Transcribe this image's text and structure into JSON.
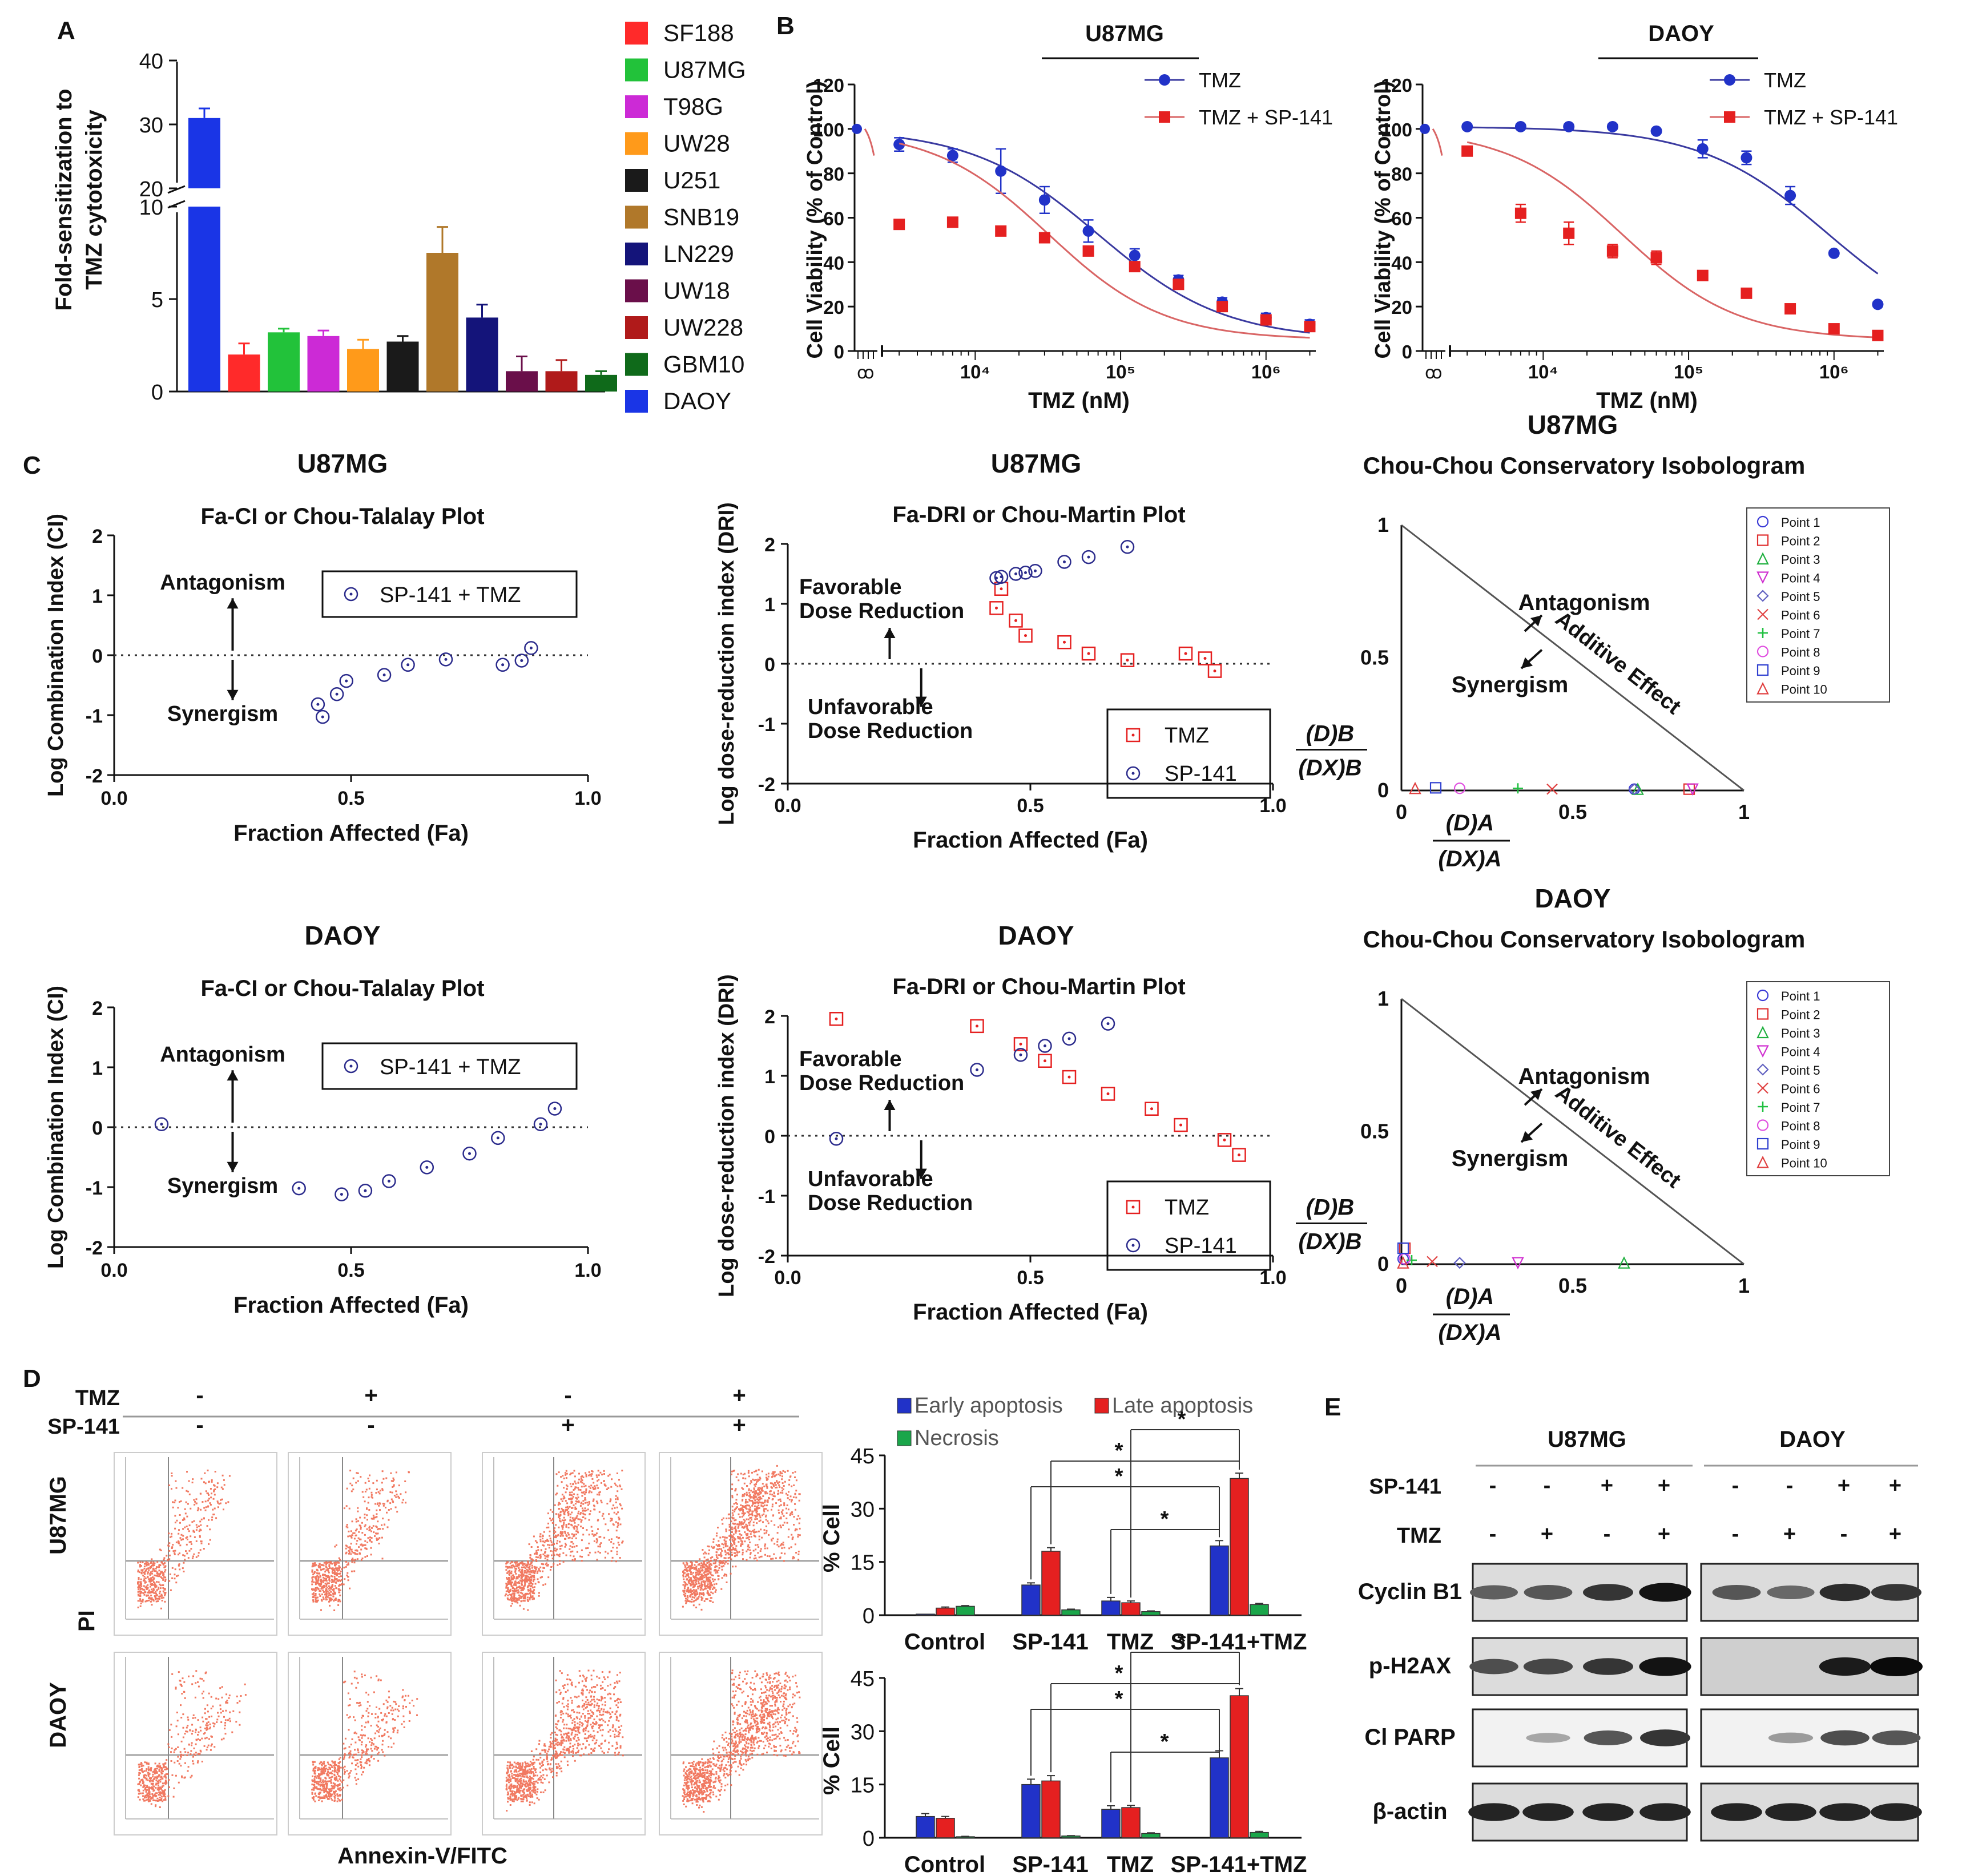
{
  "panel_letters": {
    "a": "A",
    "b": "B",
    "c": "C",
    "d": "D",
    "e": "E"
  },
  "colors": {
    "blue": "#2132c8",
    "red": "#e52020",
    "green": "#1aa64a",
    "navy": "#2b2b8c",
    "curve_blue": "#3a3aa0",
    "curve_red": "#d96565",
    "flow": "#f06a50",
    "gray": "#999999"
  },
  "chart_data": [
    {
      "id": "A",
      "type": "bar",
      "ylabel_line1": "Fold-sensitization to",
      "ylabel_line2": "TMZ cytotoxicity",
      "ylim": [
        0,
        40
      ],
      "axis_break": [
        10,
        20
      ],
      "yticks": [
        "0",
        "5",
        "10",
        "20",
        "30",
        "40"
      ],
      "categories": [
        "SF188",
        "U87MG",
        "T98G",
        "UW28",
        "U251",
        "SNB19",
        "LN229",
        "UW18",
        "UW228",
        "GBM10",
        "DAOY"
      ],
      "bar_order": [
        "DAOY",
        "SF188",
        "U87MG",
        "T98G",
        "UW28",
        "U251",
        "SNB19",
        "LN229",
        "UW18",
        "UW228",
        "GBM10"
      ],
      "values": [
        2.0,
        3.2,
        3.0,
        2.3,
        2.7,
        7.5,
        4.0,
        1.1,
        1.1,
        0.9,
        31.0
      ],
      "errors": [
        0.6,
        0.2,
        0.3,
        0.5,
        0.3,
        1.4,
        0.7,
        0.8,
        0.6,
        0.2,
        1.5
      ],
      "colors": [
        "#ff2a2a",
        "#22c23a",
        "#cc2ad6",
        "#ff9a1a",
        "#1a1a1a",
        "#b0782a",
        "#14147a",
        "#6a0f4a",
        "#b01a1a",
        "#0f6a1a",
        "#1a35e6"
      ]
    },
    {
      "id": "B-U87MG",
      "type": "line",
      "title": "U87MG",
      "ylabel": "Cell Viability (% of Control)",
      "xlabel": "TMZ (nM)",
      "xscale": "log",
      "xticks": [
        "10⁴",
        "10⁵",
        "10⁶"
      ],
      "yticks": [
        "0",
        "20",
        "40",
        "60",
        "80",
        "100",
        "120"
      ],
      "ylim": [
        0,
        120
      ],
      "legend": [
        "TMZ",
        "TMZ + SP-141"
      ],
      "series": [
        {
          "name": "TMZ",
          "x": [
            3000,
            7000,
            15000,
            30000,
            60000,
            125000,
            250000,
            500000,
            1000000,
            2000000
          ],
          "y": [
            93,
            88,
            81,
            68,
            54,
            43,
            32,
            22,
            15,
            12
          ],
          "err": [
            3,
            3,
            10,
            6,
            5,
            3,
            2,
            2,
            2,
            2
          ],
          "ec50": 70000
        },
        {
          "name": "TMZ + SP-141",
          "x": [
            3000,
            7000,
            15000,
            30000,
            60000,
            125000,
            250000,
            500000,
            1000000,
            2000000
          ],
          "y": [
            57,
            58,
            54,
            51,
            45,
            38,
            30,
            20,
            14,
            11
          ],
          "err": [
            0,
            0,
            0,
            0,
            0,
            0,
            0,
            0,
            0,
            0
          ],
          "ec50": 32000
        }
      ]
    },
    {
      "id": "B-DAOY",
      "type": "line",
      "title": "DAOY",
      "ylabel": "Cell Viability (% of Control)",
      "xlabel": "TMZ (nM)",
      "xscale": "log",
      "xticks": [
        "10⁴",
        "10⁵",
        "10⁶"
      ],
      "yticks": [
        "0",
        "20",
        "40",
        "60",
        "80",
        "100",
        "120"
      ],
      "ylim": [
        0,
        120
      ],
      "legend": [
        "TMZ",
        "TMZ + SP-141"
      ],
      "series": [
        {
          "name": "TMZ",
          "x": [
            3000,
            7000,
            15000,
            30000,
            60000,
            125000,
            250000,
            500000,
            1000000,
            2000000
          ],
          "y": [
            101,
            101,
            101,
            101,
            99,
            91,
            87,
            70,
            44,
            21
          ],
          "err": [
            1,
            1,
            1,
            1,
            1,
            4,
            3,
            4,
            1,
            1
          ],
          "ec50": 900000
        },
        {
          "name": "TMZ + SP-141",
          "x": [
            3000,
            7000,
            15000,
            30000,
            60000,
            125000,
            250000,
            500000,
            1000000,
            2000000
          ],
          "y": [
            90,
            62,
            53,
            45,
            42,
            34,
            26,
            19,
            10,
            7
          ],
          "err": [
            1,
            4,
            5,
            3,
            3,
            2,
            1,
            1,
            1,
            1
          ],
          "ec50": 35000
        }
      ]
    },
    {
      "id": "C-CI-U87MG",
      "type": "scatter",
      "title": "U87MG",
      "subtitle": "Fa-CI or Chou-Talalay Plot",
      "xlabel": "Fraction Affected (Fa)",
      "ylabel": "Log Combination Index (CI)",
      "xlim": [
        0,
        1
      ],
      "ylim": [
        -2,
        2
      ],
      "xticks": [
        "0.0",
        "0.5",
        "1.0"
      ],
      "yticks": [
        "-2",
        "-1",
        "0",
        "1",
        "2"
      ],
      "legend": [
        "SP-141 + TMZ"
      ],
      "annotations": [
        "Antagonism",
        "Synergism"
      ],
      "x": [
        0.43,
        0.44,
        0.47,
        0.49,
        0.57,
        0.62,
        0.7,
        0.82,
        0.86,
        0.88
      ],
      "y": [
        -0.82,
        -1.03,
        -0.65,
        -0.43,
        -0.33,
        -0.16,
        -0.07,
        -0.16,
        -0.09,
        0.12
      ]
    },
    {
      "id": "C-DRI-U87MG",
      "type": "scatter",
      "title": "U87MG",
      "subtitle": "Fa-DRI or Chou-Martin Plot",
      "xlabel": "Fraction Affected (Fa)",
      "ylabel": "Log dose-reduction index (DRI)",
      "xlim": [
        0,
        1
      ],
      "ylim": [
        -2,
        2
      ],
      "xticks": [
        "0.0",
        "0.5",
        "1.0"
      ],
      "yticks": [
        "-2",
        "-1",
        "0",
        "1",
        "2"
      ],
      "legend": [
        "TMZ",
        "SP-141"
      ],
      "annotations": [
        "Favorable",
        "Dose Reduction",
        "Unfavorable",
        "Dose Reduction"
      ],
      "series": [
        {
          "name": "TMZ",
          "x": [
            0.43,
            0.44,
            0.47,
            0.49,
            0.57,
            0.62,
            0.7,
            0.82,
            0.86,
            0.88
          ],
          "y": [
            0.93,
            1.25,
            0.72,
            0.47,
            0.36,
            0.17,
            0.06,
            0.17,
            0.09,
            -0.12
          ]
        },
        {
          "name": "SP-141",
          "x": [
            0.43,
            0.44,
            0.47,
            0.49,
            0.51,
            0.57,
            0.62,
            0.7
          ],
          "y": [
            1.43,
            1.45,
            1.5,
            1.52,
            1.55,
            1.7,
            1.78,
            1.95
          ]
        }
      ]
    },
    {
      "id": "C-ISO-U87MG",
      "type": "scatter",
      "title": "U87MG",
      "subtitle": "Chou-Chou Conservatory Isobologram",
      "xlabel": "(D)A/(DX)A",
      "ylabel": "(D)B/(DX)B",
      "xlim": [
        0,
        1
      ],
      "ylim": [
        0,
        1
      ],
      "xticks": [
        "0",
        "0.5",
        "1"
      ],
      "yticks": [
        "0",
        "0.5",
        "1"
      ],
      "annotations": [
        "Antagonism",
        "Synergism",
        "Additive Effect"
      ],
      "legend": [
        "Point 1",
        "Point 2",
        "Point 3",
        "Point 4",
        "Point 5",
        "Point 6",
        "Point 7",
        "Point 8",
        "Point 9",
        "Point 10"
      ],
      "x": [
        0.68,
        0.84,
        0.69,
        0.85,
        0.68,
        0.44,
        0.34,
        0.17,
        0.1,
        0.04
      ],
      "y": [
        0.005,
        0.005,
        0.005,
        0.005,
        0.005,
        0.005,
        0.008,
        0.008,
        0.01,
        0.008
      ]
    },
    {
      "id": "C-CI-DAOY",
      "type": "scatter",
      "title": "DAOY",
      "subtitle": "Fa-CI or Chou-Talalay Plot",
      "xlabel": "Fraction Affected (Fa)",
      "ylabel": "Log Combination Index (CI)",
      "xlim": [
        0,
        1
      ],
      "ylim": [
        -2,
        2
      ],
      "xticks": [
        "0.0",
        "0.5",
        "1.0"
      ],
      "yticks": [
        "-2",
        "-1",
        "0",
        "1",
        "2"
      ],
      "legend": [
        "SP-141 + TMZ"
      ],
      "annotations": [
        "Antagonism",
        "Synergism"
      ],
      "x": [
        0.1,
        0.39,
        0.48,
        0.53,
        0.58,
        0.66,
        0.75,
        0.81,
        0.9,
        0.93
      ],
      "y": [
        0.05,
        -1.02,
        -1.12,
        -1.06,
        -0.9,
        -0.67,
        -0.44,
        -0.18,
        0.05,
        0.31
      ]
    },
    {
      "id": "C-DRI-DAOY",
      "type": "scatter",
      "title": "DAOY",
      "subtitle": "Fa-DRI or Chou-Martin Plot",
      "xlabel": "Fraction Affected (Fa)",
      "ylabel": "Log dose-reduction index (DRI)",
      "xlim": [
        0,
        1
      ],
      "ylim": [
        -2,
        2
      ],
      "xticks": [
        "0.0",
        "0.5",
        "1.0"
      ],
      "yticks": [
        "-2",
        "-1",
        "0",
        "1",
        "2"
      ],
      "legend": [
        "TMZ",
        "SP-141"
      ],
      "annotations": [
        "Favorable",
        "Dose Reduction",
        "Unfavorable",
        "Dose Reduction"
      ],
      "series": [
        {
          "name": "TMZ",
          "x": [
            0.1,
            0.39,
            0.48,
            0.53,
            0.58,
            0.66,
            0.75,
            0.81,
            0.9,
            0.93
          ],
          "y": [
            1.95,
            1.83,
            1.53,
            1.25,
            0.98,
            0.7,
            0.45,
            0.18,
            -0.07,
            -0.32
          ]
        },
        {
          "name": "SP-141",
          "x": [
            0.1,
            0.39,
            0.48,
            0.53,
            0.58,
            0.66
          ],
          "y": [
            -0.05,
            1.1,
            1.35,
            1.5,
            1.62,
            1.87
          ]
        }
      ]
    },
    {
      "id": "C-ISO-DAOY",
      "type": "scatter",
      "title": "DAOY",
      "subtitle": "Chou-Chou Conservatory Isobologram",
      "xlabel": "(D)A/(DX)A",
      "ylabel": "(D)B/(DX)B",
      "xlim": [
        0,
        1
      ],
      "ylim": [
        0,
        1
      ],
      "xticks": [
        "0",
        "0.5",
        "1"
      ],
      "yticks": [
        "0",
        "0.5",
        "1"
      ],
      "annotations": [
        "Antagonism",
        "Synergism",
        "Additive Effect"
      ],
      "legend": [
        "Point 1",
        "Point 2",
        "Point 3",
        "Point 4",
        "Point 5",
        "Point 6",
        "Point 7",
        "Point 8",
        "Point 9",
        "Point 10"
      ],
      "x": [
        0.005,
        0.01,
        0.65,
        0.34,
        0.17,
        0.09,
        0.03,
        0.01,
        0.005,
        0.005
      ],
      "y": [
        0.02,
        0.06,
        0.005,
        0.005,
        0.005,
        0.01,
        0.015,
        0.02,
        0.06,
        0.005
      ]
    },
    {
      "id": "D-U87MG",
      "type": "bar",
      "ylabel": "% Cell",
      "ylim": [
        0,
        45
      ],
      "yticks": [
        "0",
        "15",
        "30",
        "45"
      ],
      "categories": [
        "Control",
        "SP-141",
        "TMZ",
        "SP-141+TMZ"
      ],
      "legend": [
        "Early apoptosis",
        "Late apoptosis",
        "Necrosis"
      ],
      "series": [
        {
          "name": "Early apoptosis",
          "values": [
            0.3,
            8.5,
            4.0,
            19.5
          ],
          "errors": [
            0,
            0.6,
            1.0,
            1.5
          ]
        },
        {
          "name": "Late apoptosis",
          "values": [
            2.0,
            18.0,
            3.5,
            38.5
          ],
          "errors": [
            0.3,
            1.0,
            0.5,
            1.5
          ]
        },
        {
          "name": "Necrosis",
          "values": [
            2.5,
            1.5,
            1.0,
            3.0
          ],
          "errors": [
            0.2,
            0.2,
            0.2,
            0.3
          ]
        }
      ],
      "significance": [
        "*",
        "*",
        "*",
        "*"
      ]
    },
    {
      "id": "D-DAOY",
      "type": "bar",
      "ylabel": "% Cell",
      "ylim": [
        0,
        45
      ],
      "yticks": [
        "0",
        "15",
        "30",
        "45"
      ],
      "categories": [
        "Control",
        "SP-141",
        "TMZ",
        "SP-141+TMZ"
      ],
      "legend": [
        "Early apoptosis",
        "Late apoptosis",
        "Necrosis"
      ],
      "series": [
        {
          "name": "Early apoptosis",
          "values": [
            6.0,
            15.0,
            8.0,
            22.5
          ],
          "errors": [
            0.8,
            1.5,
            1.0,
            2.0
          ]
        },
        {
          "name": "Late apoptosis",
          "values": [
            5.5,
            16.0,
            8.5,
            40.0
          ],
          "errors": [
            0.5,
            1.5,
            0.6,
            2.0
          ]
        },
        {
          "name": "Necrosis",
          "values": [
            0.3,
            0.5,
            1.2,
            1.5
          ],
          "errors": [
            0.1,
            0.1,
            0.2,
            0.3
          ]
        }
      ],
      "significance": [
        "*",
        "*",
        "*",
        "*"
      ]
    }
  ],
  "flow": {
    "rows": [
      "U87MG",
      "DAOY"
    ],
    "row_labels": {
      "tmz": "TMZ",
      "sp141": "SP-141"
    },
    "tmz_signs": [
      "-",
      "+",
      "-",
      "+"
    ],
    "sp141_signs": [
      "-",
      "-",
      "+",
      "+"
    ],
    "xlabel": "Annexin-V/FITC",
    "ylabel": "PI"
  },
  "western": {
    "cell_lines": [
      "U87MG",
      "DAOY"
    ],
    "sp141_label": "SP-141",
    "tmz_label": "TMZ",
    "sp141_signs": [
      "-",
      "-",
      "+",
      "+"
    ],
    "tmz_signs": [
      "-",
      "+",
      "-",
      "+"
    ],
    "bands": [
      "Cyclin B1",
      "p-H2AX",
      "Cl PARP",
      "β-actin"
    ],
    "intensity": {
      "U87MG": [
        [
          0.5,
          0.55,
          0.75,
          0.95
        ],
        [
          0.6,
          0.65,
          0.75,
          0.95
        ],
        [
          0.0,
          0.08,
          0.55,
          0.75
        ],
        [
          0.85,
          0.85,
          0.85,
          0.85
        ]
      ],
      "DAOY": [
        [
          0.55,
          0.45,
          0.8,
          0.75
        ],
        [
          0.0,
          0.0,
          0.9,
          1.0
        ],
        [
          0.0,
          0.15,
          0.6,
          0.55
        ],
        [
          0.85,
          0.85,
          0.85,
          0.85
        ]
      ]
    }
  }
}
